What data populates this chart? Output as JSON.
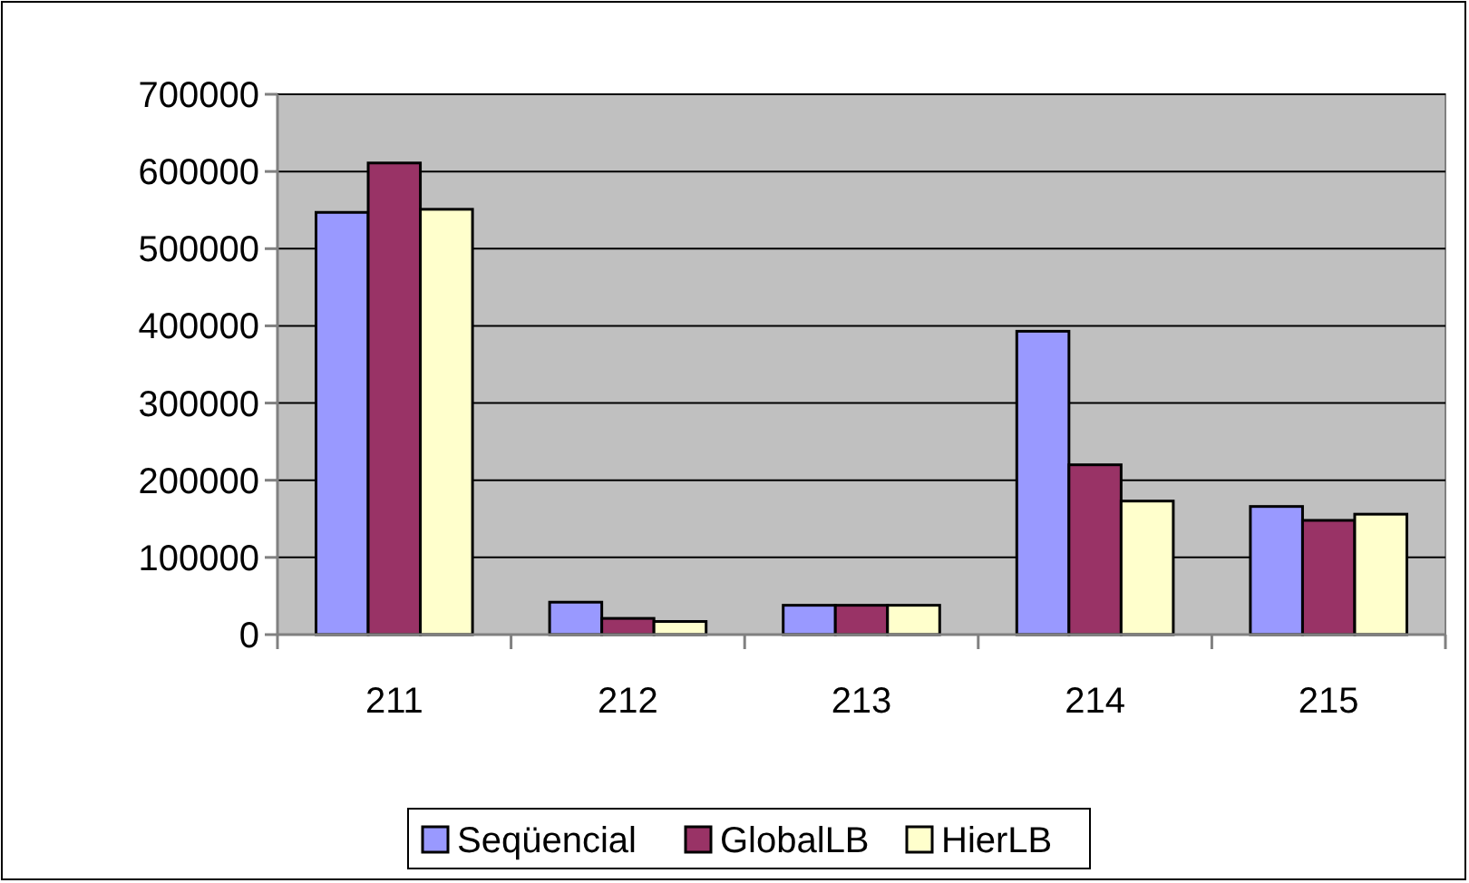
{
  "chart_data": {
    "type": "bar",
    "categories": [
      "211",
      "212",
      "213",
      "214",
      "215"
    ],
    "series": [
      {
        "name": "Seqüencial",
        "color": "#9999ff",
        "values": [
          547000,
          42000,
          38000,
          393000,
          166000
        ]
      },
      {
        "name": "GlobalLB",
        "color": "#993366",
        "values": [
          611000,
          21000,
          38000,
          220000,
          148000
        ]
      },
      {
        "name": "HierLB",
        "color": "#ffffcc",
        "values": [
          551000,
          17000,
          38000,
          173000,
          156000
        ]
      }
    ],
    "ylim": [
      0,
      700000
    ],
    "yticks": [
      0,
      100000,
      200000,
      300000,
      400000,
      500000,
      600000,
      700000
    ],
    "grid": "y",
    "legend": "bottom"
  }
}
